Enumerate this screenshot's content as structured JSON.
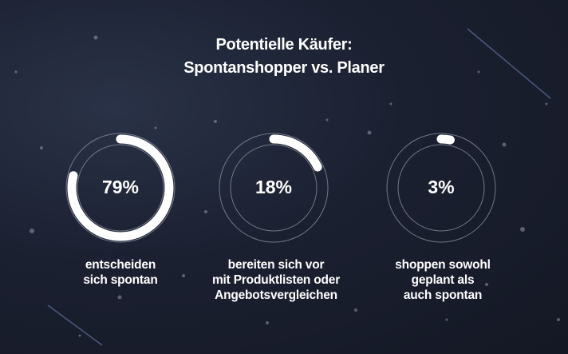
{
  "chart_data": {
    "type": "pie",
    "title_lines": [
      "Potentielle Käufer:",
      "Spontanshopper vs. Planer"
    ],
    "items": [
      {
        "value": 79,
        "label": "79%",
        "caption_lines": [
          "entscheiden",
          "sich spontan"
        ]
      },
      {
        "value": 18,
        "label": "18%",
        "caption_lines": [
          "bereiten sich vor",
          "mit Produktlisten oder",
          "Angebotsvergleichen"
        ]
      },
      {
        "value": 3,
        "label": "3%",
        "caption_lines": [
          "shoppen sowohl",
          "geplant als",
          "auch spontan"
        ]
      }
    ]
  },
  "colors": {
    "background": "#1b2031",
    "ring_track": "#8a8f9c",
    "ring_fill": "#ffffff",
    "text": "#ffffff"
  }
}
